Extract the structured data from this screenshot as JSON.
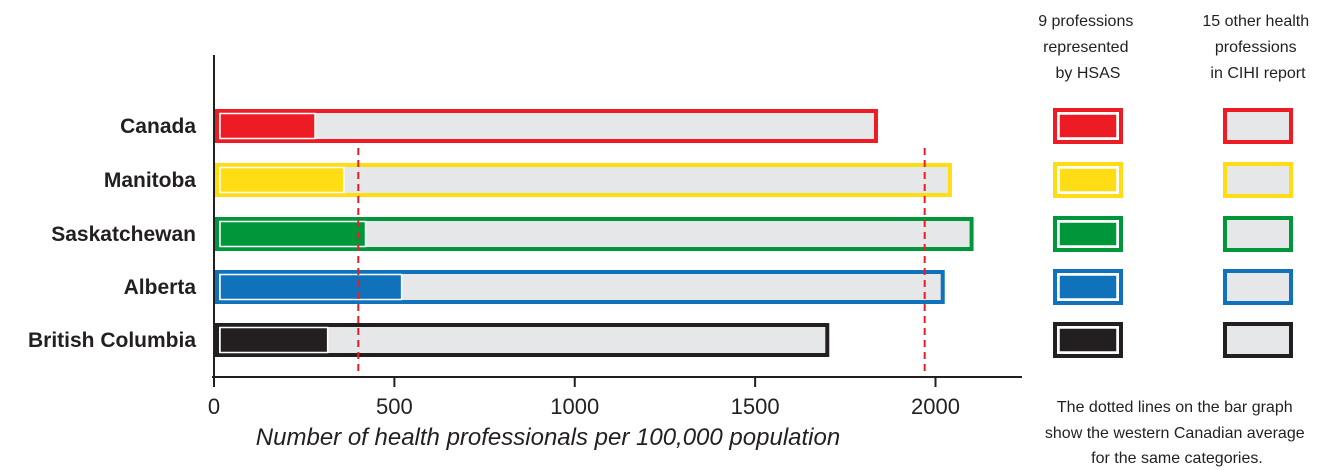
{
  "chart_data": {
    "type": "bar",
    "orientation": "horizontal",
    "categories": [
      "Canada",
      "Manitoba",
      "Saskatchewan",
      "Alberta",
      "British Columbia"
    ],
    "colors": [
      "#ed1c24",
      "#ffdd15",
      "#00973a",
      "#0f72bb",
      "#231f20"
    ],
    "series": [
      {
        "values": [
          280,
          360,
          420,
          520,
          315
        ]
      },
      {
        "values": [
          1835,
          2040,
          2100,
          2020,
          1700
        ]
      }
    ],
    "reference_lines": [
      400,
      1970
    ],
    "xlabel": "Number of health professionals per 100,000 population",
    "xlim": [
      0,
      2250
    ],
    "xticks": [
      0,
      500,
      1000,
      1500,
      2000
    ],
    "tick_labels": [
      "0",
      "500",
      "1000",
      "1500",
      "2000"
    ],
    "legend": {
      "columns": [
        [
          "9 professions",
          "represented",
          "by HSAS"
        ],
        [
          "15 other health",
          "professions",
          "in CIHI report"
        ]
      ],
      "note": [
        "The dotted lines on the bar graph",
        "show the western Canadian average",
        "for the same categories."
      ]
    }
  }
}
